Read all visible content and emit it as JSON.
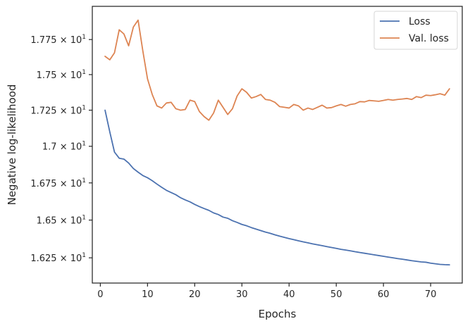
{
  "chart_data": {
    "type": "line",
    "xlabel": "Epochs",
    "ylabel": "Negative log-likelihood",
    "xlim": [
      -1.7,
      76.7
    ],
    "ylim": [
      16.085,
      17.99
    ],
    "yscale": "log",
    "grid": false,
    "legend_position": "top-right",
    "x_ticks": [
      0,
      10,
      20,
      30,
      40,
      50,
      60,
      70
    ],
    "x_tick_labels": [
      "0",
      "10",
      "20",
      "30",
      "40",
      "50",
      "60",
      "70"
    ],
    "y_ticks": [
      16.25,
      16.5,
      16.75,
      17.0,
      17.25,
      17.5,
      17.75
    ],
    "y_tick_mantissas": [
      "1.625",
      "1.65",
      "1.675",
      "1.7",
      "1.725",
      "1.75",
      "1.775"
    ],
    "y_tick_base": "× 10",
    "y_tick_exponent": "1",
    "series": [
      {
        "name": "Loss",
        "color": "#4c72b0",
        "values": [
          17.25,
          17.1,
          16.96,
          16.918,
          16.912,
          16.885,
          16.848,
          16.823,
          16.8,
          16.785,
          16.765,
          16.742,
          16.72,
          16.7,
          16.685,
          16.67,
          16.65,
          16.635,
          16.622,
          16.605,
          16.59,
          16.577,
          16.565,
          16.548,
          16.537,
          16.52,
          16.512,
          16.496,
          16.484,
          16.471,
          16.462,
          16.45,
          16.44,
          16.43,
          16.42,
          16.412,
          16.402,
          16.393,
          16.385,
          16.377,
          16.37,
          16.362,
          16.355,
          16.349,
          16.342,
          16.336,
          16.33,
          16.324,
          16.318,
          16.312,
          16.306,
          16.301,
          16.296,
          16.29,
          16.285,
          16.28,
          16.275,
          16.27,
          16.265,
          16.26,
          16.255,
          16.25,
          16.245,
          16.241,
          16.236,
          16.231,
          16.227,
          16.223,
          16.221,
          16.215,
          16.211,
          16.207,
          16.205,
          16.204
        ]
      },
      {
        "name": "Val. loss",
        "color": "#dd8452",
        "values": [
          17.63,
          17.605,
          17.655,
          17.82,
          17.79,
          17.705,
          17.84,
          17.89,
          17.67,
          17.47,
          17.36,
          17.28,
          17.265,
          17.3,
          17.305,
          17.26,
          17.25,
          17.255,
          17.32,
          17.31,
          17.24,
          17.205,
          17.18,
          17.23,
          17.32,
          17.27,
          17.22,
          17.26,
          17.35,
          17.4,
          17.375,
          17.335,
          17.345,
          17.36,
          17.325,
          17.32,
          17.305,
          17.275,
          17.27,
          17.265,
          17.29,
          17.28,
          17.25,
          17.265,
          17.255,
          17.27,
          17.285,
          17.265,
          17.268,
          17.28,
          17.29,
          17.278,
          17.29,
          17.295,
          17.31,
          17.308,
          17.318,
          17.315,
          17.312,
          17.318,
          17.325,
          17.32,
          17.325,
          17.328,
          17.332,
          17.325,
          17.345,
          17.338,
          17.355,
          17.352,
          17.358,
          17.365,
          17.355,
          17.4
        ]
      }
    ]
  }
}
